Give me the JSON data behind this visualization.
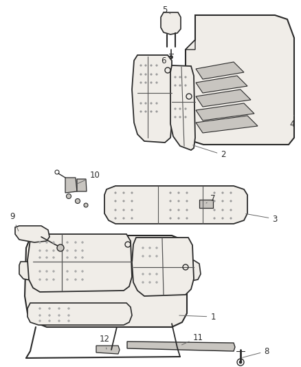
{
  "background_color": "#ffffff",
  "line_color": "#2a2a2a",
  "label_color": "#1a1a1a",
  "figsize": [
    4.38,
    5.33
  ],
  "dpi": 100,
  "seat_fill": "#f0ede8",
  "panel_fill": "#e8e5e0",
  "dark_fill": "#c8c5c0"
}
